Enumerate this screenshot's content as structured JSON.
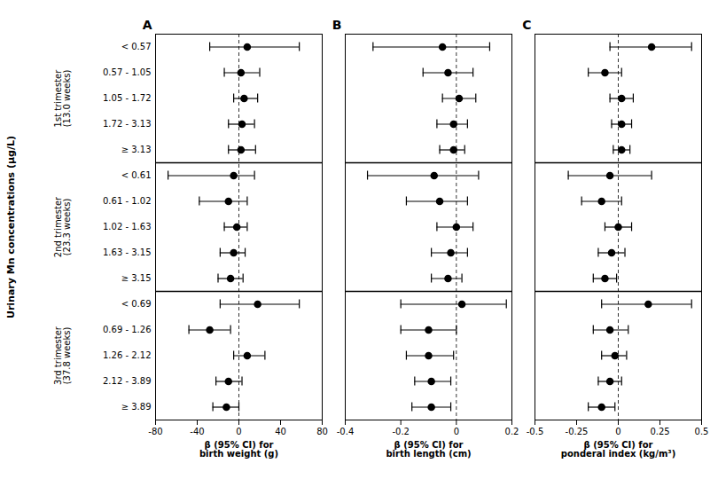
{
  "chart_data": {
    "type": "forest",
    "ylabel": "Urinary Mn concentrations (μg/L)",
    "groups": [
      {
        "label": "1st trimester\n(13.0 weeks)",
        "categories": [
          "< 0.57",
          "0.57 - 1.05",
          "1.05 - 1.72",
          "1.72 - 3.13",
          "≥ 3.13"
        ]
      },
      {
        "label": "2nd trimester\n(23.3 weeks)",
        "categories": [
          "< 0.61",
          "0.61 - 1.02",
          "1.02 - 1.63",
          "1.63 - 3.15",
          "≥ 3.15"
        ]
      },
      {
        "label": "3rd trimester\n(37.8 weeks)",
        "categories": [
          "< 0.69",
          "0.69 - 1.26",
          "1.26 - 2.12",
          "2.12 - 3.89",
          "≥ 3.89"
        ]
      }
    ],
    "panels": [
      {
        "title": "A",
        "xlabel": "β (95% CI) for\nbirth weight (g)",
        "xlim": [
          -80,
          80
        ],
        "xticks": [
          -80,
          -40,
          0,
          40,
          80
        ],
        "values": [
          8,
          2,
          5,
          3,
          2,
          -5,
          -10,
          -2,
          -5,
          -8,
          18,
          -28,
          8,
          -10,
          -12
        ],
        "lo": [
          -28,
          -14,
          -5,
          -10,
          -10,
          -68,
          -38,
          -14,
          -18,
          -20,
          -18,
          -48,
          -5,
          -22,
          -25
        ],
        "hi": [
          58,
          20,
          18,
          15,
          16,
          15,
          8,
          8,
          6,
          4,
          58,
          -8,
          25,
          3,
          0
        ]
      },
      {
        "title": "B",
        "xlabel": "β (95% CI) for\nbirth length (cm)",
        "xlim": [
          -0.4,
          0.2
        ],
        "xticks": [
          -0.4,
          -0.2,
          0,
          0.2
        ],
        "values": [
          -0.05,
          -0.03,
          0.01,
          -0.01,
          -0.01,
          -0.08,
          -0.06,
          0.0,
          -0.02,
          -0.03,
          0.02,
          -0.1,
          -0.1,
          -0.09,
          -0.09
        ],
        "lo": [
          -0.3,
          -0.12,
          -0.05,
          -0.07,
          -0.06,
          -0.32,
          -0.18,
          -0.07,
          -0.09,
          -0.09,
          -0.2,
          -0.2,
          -0.18,
          -0.15,
          -0.16
        ],
        "hi": [
          0.12,
          0.06,
          0.07,
          0.04,
          0.03,
          0.08,
          0.04,
          0.06,
          0.04,
          0.02,
          0.18,
          0.0,
          -0.01,
          -0.02,
          -0.02
        ]
      },
      {
        "title": "C",
        "xlabel": "β (95% CI) for\nponderal index (kg/m³)",
        "xlim": [
          -0.5,
          0.5
        ],
        "xticks": [
          -0.5,
          -0.25,
          0,
          0.25,
          0.5
        ],
        "values": [
          0.2,
          -0.08,
          0.02,
          0.02,
          0.02,
          -0.05,
          -0.1,
          0.0,
          -0.04,
          -0.08,
          0.18,
          -0.05,
          -0.02,
          -0.05,
          -0.1
        ],
        "lo": [
          -0.05,
          -0.18,
          -0.05,
          -0.04,
          -0.03,
          -0.3,
          -0.22,
          -0.08,
          -0.12,
          -0.15,
          -0.1,
          -0.15,
          -0.1,
          -0.12,
          -0.18
        ],
        "hi": [
          0.44,
          0.02,
          0.09,
          0.08,
          0.07,
          0.2,
          0.02,
          0.08,
          0.04,
          -0.01,
          0.44,
          0.06,
          0.05,
          0.02,
          -0.02
        ]
      }
    ]
  }
}
